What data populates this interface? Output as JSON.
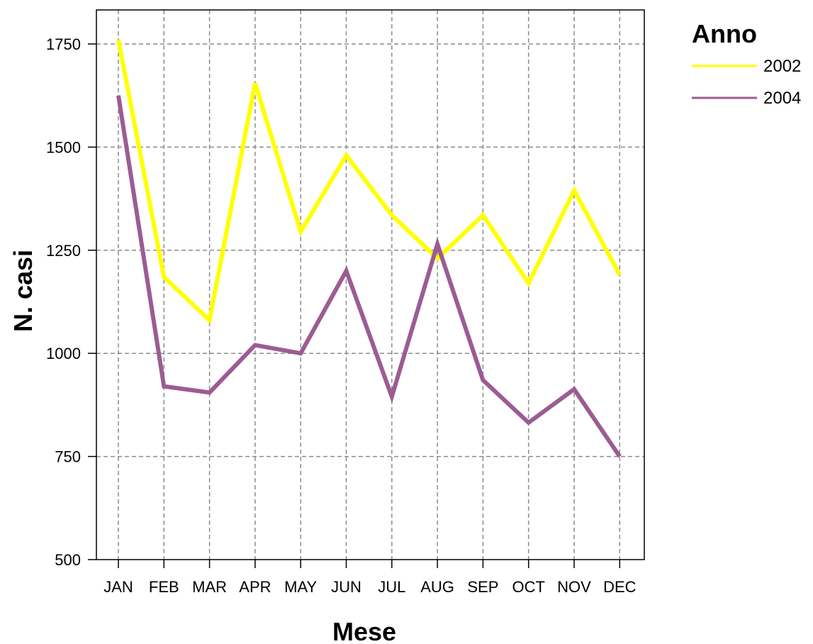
{
  "chart_data": {
    "type": "line",
    "xlabel": "Mese",
    "ylabel": "N. casi",
    "categories": [
      "JAN",
      "FEB",
      "MAR",
      "APR",
      "MAY",
      "JUN",
      "JUL",
      "AUG",
      "SEP",
      "OCT",
      "NOV",
      "DEC"
    ],
    "ylim": [
      500,
      1800
    ],
    "yticks": [
      500,
      750,
      1000,
      1250,
      1500,
      1750
    ],
    "grid": true,
    "legend": {
      "title": "Anno",
      "placement": "top-right outside plot"
    },
    "series": [
      {
        "name": "2002",
        "color": "#ffff00",
        "values": [
          1760,
          1185,
          1080,
          1655,
          1295,
          1480,
          1335,
          1230,
          1335,
          1170,
          1395,
          1190
        ]
      },
      {
        "name": "2004",
        "color": "#9b5c93",
        "values": [
          1625,
          920,
          905,
          1020,
          1000,
          1200,
          895,
          1265,
          935,
          832,
          913,
          750
        ]
      }
    ]
  }
}
